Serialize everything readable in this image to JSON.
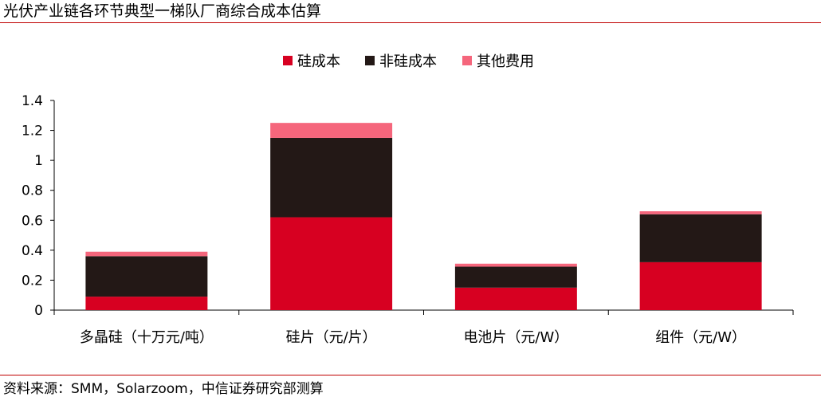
{
  "title": "光伏产业链各环节典型一梯队厂商综合成本估算",
  "source": "资料来源：SMM，Solarzoom，中信证券研究部测算",
  "colors": {
    "rule": "#c00000",
    "silicon": "#d70021",
    "non_silicon": "#231816",
    "other": "#f5667c"
  },
  "chart_data": {
    "type": "bar",
    "stacked": true,
    "categories": [
      "多晶硅（十万元/吨）",
      "硅片（元/片）",
      "电池片（元/W）",
      "组件（元/W）"
    ],
    "series": [
      {
        "name": "硅成本",
        "color": "#d70021",
        "values": [
          0.09,
          0.62,
          0.15,
          0.32
        ]
      },
      {
        "name": "非硅成本",
        "color": "#231816",
        "values": [
          0.27,
          0.53,
          0.14,
          0.32
        ]
      },
      {
        "name": "其他费用",
        "color": "#f5667c",
        "values": [
          0.03,
          0.1,
          0.02,
          0.02
        ]
      }
    ],
    "ylim": [
      0,
      1.4
    ],
    "yticks": [
      "0",
      "0.2",
      "0.4",
      "0.6",
      "0.8",
      "1",
      "1.2",
      "1.4"
    ],
    "grid": false,
    "legend_position": "top-center"
  }
}
